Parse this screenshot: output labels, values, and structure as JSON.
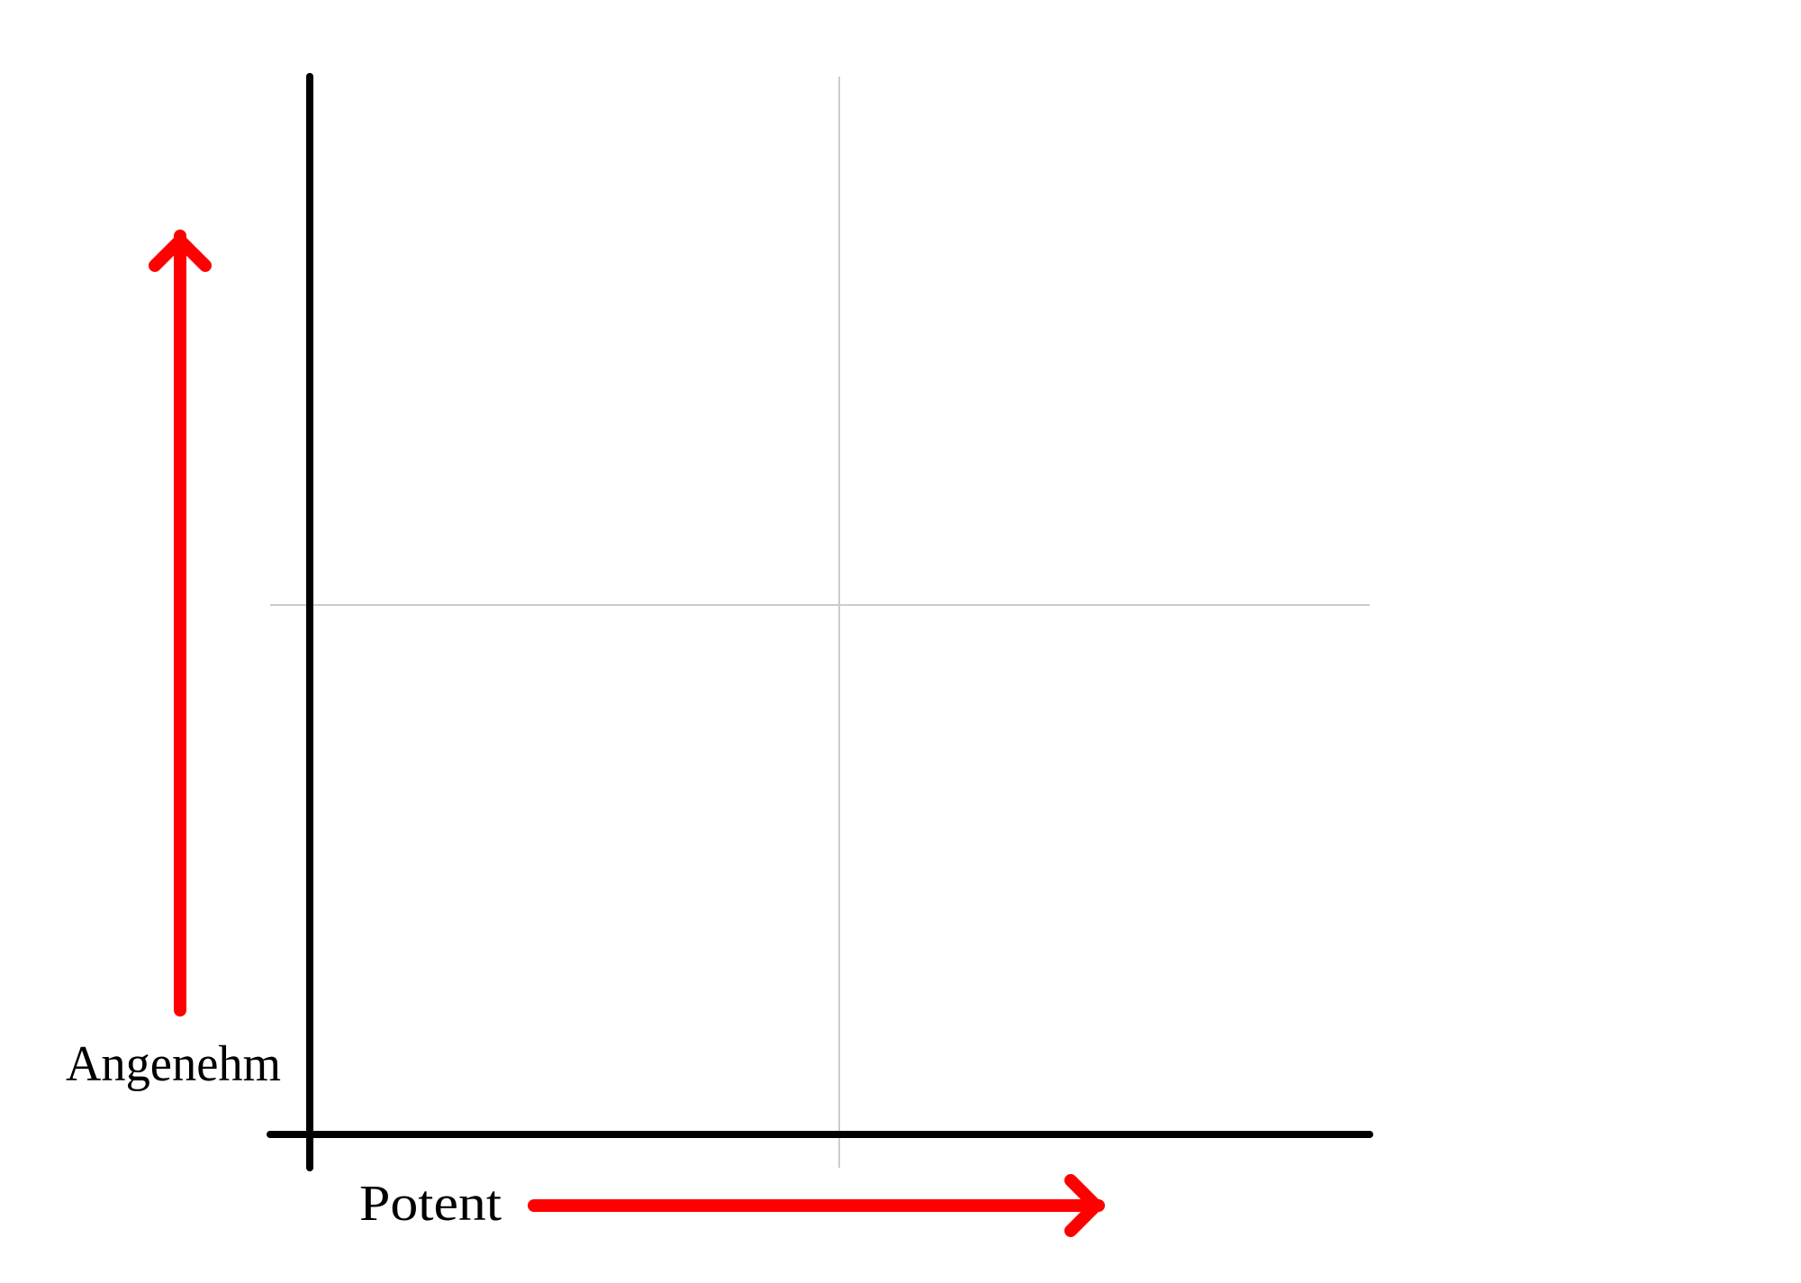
{
  "labels": {
    "y_axis": "Angenehm",
    "x_axis": "Potent"
  },
  "colors": {
    "axis": "#000000",
    "grid": "#cccccc",
    "arrow": "#ff0000",
    "background": "#ffffff"
  }
}
